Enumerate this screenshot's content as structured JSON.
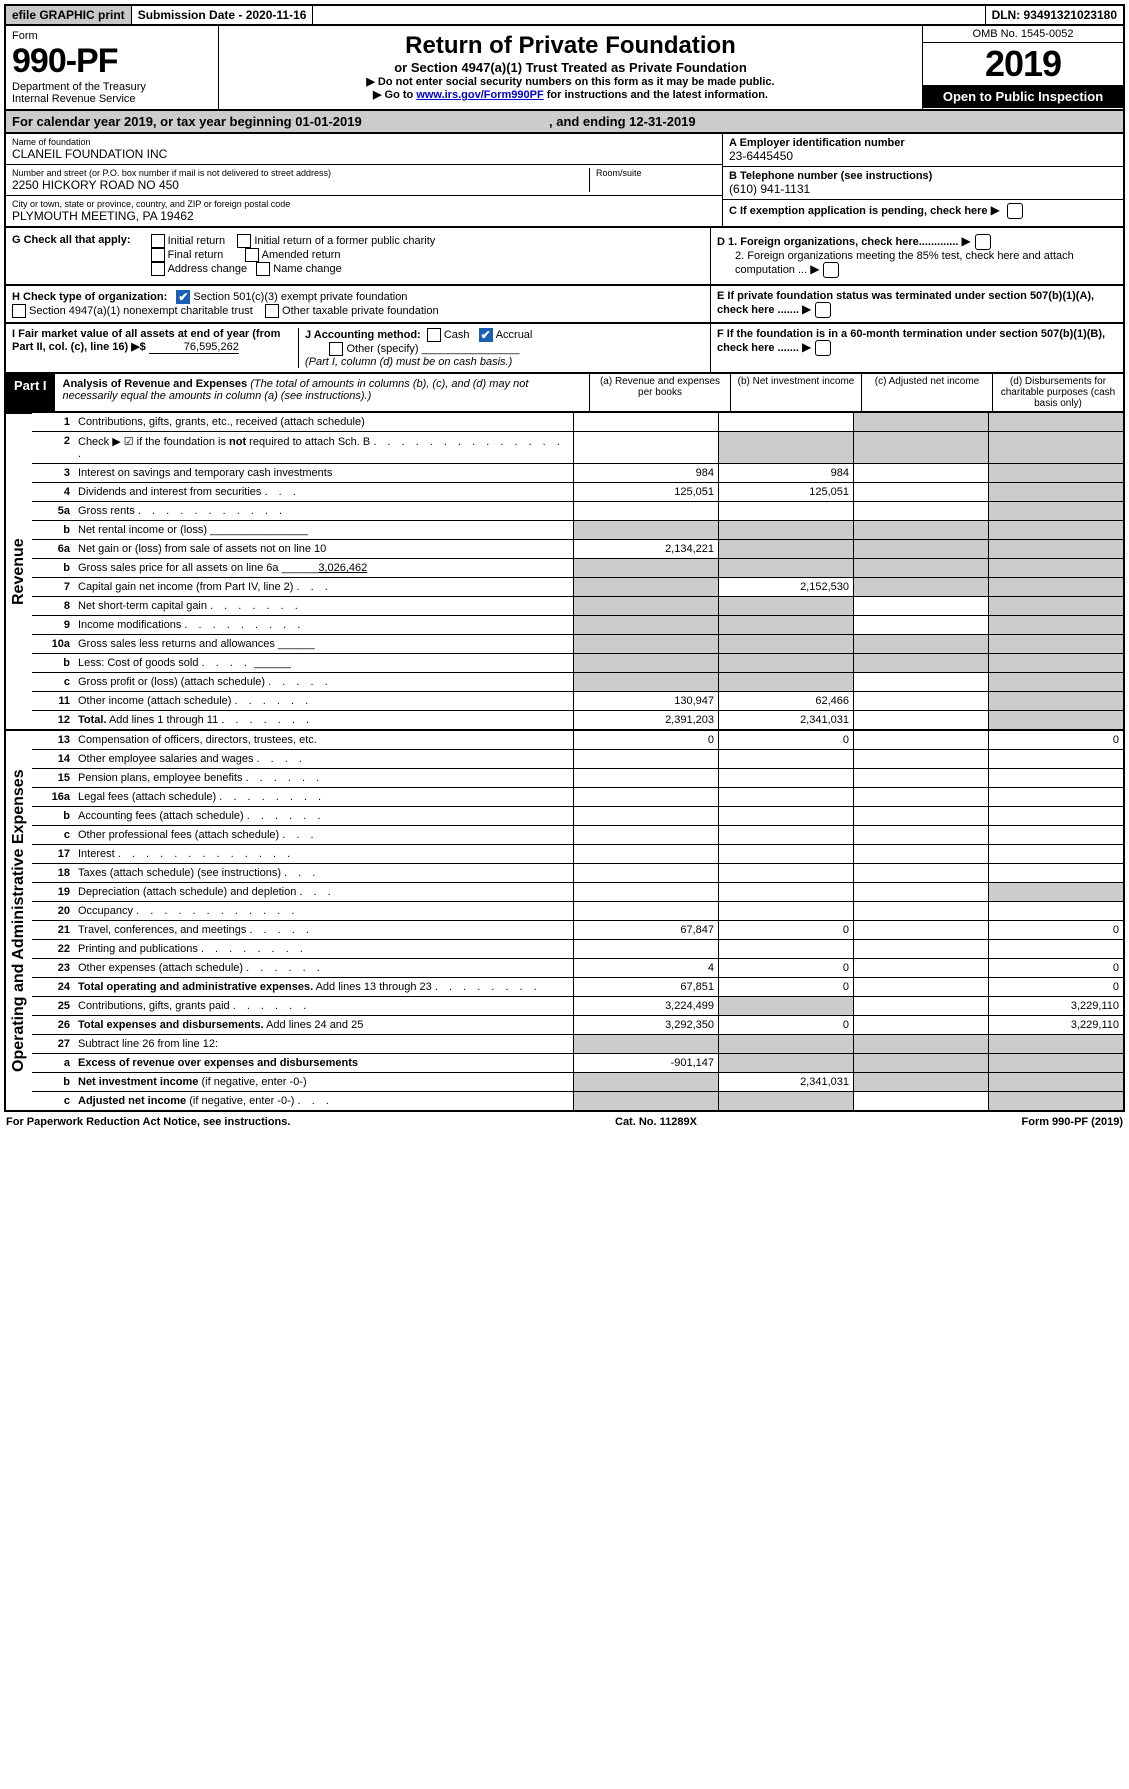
{
  "header": {
    "efile": "efile GRAPHIC print",
    "submission_label": "Submission Date - 2020-11-16",
    "dln": "DLN: 93491321023180"
  },
  "form": {
    "form_label": "Form",
    "form_number": "990-PF",
    "dept": "Department of the Treasury",
    "irs": "Internal Revenue Service",
    "title": "Return of Private Foundation",
    "subtitle": "or Section 4947(a)(1) Trust Treated as Private Foundation",
    "note1": "▶ Do not enter social security numbers on this form as it may be made public.",
    "note2_prefix": "▶ Go to ",
    "note2_link": "www.irs.gov/Form990PF",
    "note2_suffix": " for instructions and the latest information.",
    "omb": "OMB No. 1545-0052",
    "year": "2019",
    "open_public": "Open to Public Inspection"
  },
  "calyear": {
    "text_left": "For calendar year 2019, or tax year beginning 01-01-2019",
    "text_right": ", and ending 12-31-2019"
  },
  "ident": {
    "name_label": "Name of foundation",
    "name": "CLANEIL FOUNDATION INC",
    "addr_label": "Number and street (or P.O. box number if mail is not delivered to street address)",
    "addr": "2250 HICKORY ROAD NO 450",
    "room_label": "Room/suite",
    "city_label": "City or town, state or province, country, and ZIP or foreign postal code",
    "city": "PLYMOUTH MEETING, PA  19462",
    "ein_label": "A Employer identification number",
    "ein": "23-6445450",
    "tel_label": "B Telephone number (see instructions)",
    "tel": "(610) 941-1131",
    "c_label": "C  If exemption application is pending, check here"
  },
  "g": {
    "label": "G Check all that apply:",
    "opts": [
      "Initial return",
      "Initial return of a former public charity",
      "Final return",
      "Amended return",
      "Address change",
      "Name change"
    ],
    "d1": "D 1. Foreign organizations, check here.............",
    "d2": "2. Foreign organizations meeting the 85% test, check here and attach computation ...",
    "e": "E  If private foundation status was terminated under section 507(b)(1)(A), check here .......",
    "f": "F  If the foundation is in a 60-month termination under section 507(b)(1)(B), check here ......."
  },
  "h": {
    "label": "H Check type of organization:",
    "opt1": "Section 501(c)(3) exempt private foundation",
    "opt2": "Section 4947(a)(1) nonexempt charitable trust",
    "opt3": "Other taxable private foundation"
  },
  "i": {
    "label": "I Fair market value of all assets at end of year (from Part II, col. (c), line 16) ▶$",
    "value": "76,595,262"
  },
  "j": {
    "label": "J Accounting method:",
    "cash": "Cash",
    "accrual": "Accrual",
    "other": "Other (specify)",
    "note": "(Part I, column (d) must be on cash basis.)"
  },
  "part1": {
    "label": "Part I",
    "title": "Analysis of Revenue and Expenses",
    "subtitle": "(The total of amounts in columns (b), (c), and (d) may not necessarily equal the amounts in column (a) (see instructions).)",
    "col_a": "(a) Revenue and expenses per books",
    "col_b": "(b) Net investment income",
    "col_c": "(c) Adjusted net income",
    "col_d": "(d) Disbursements for charitable purposes (cash basis only)",
    "revenue_label": "Revenue",
    "expenses_label": "Operating and Administrative Expenses"
  },
  "rows": [
    {
      "n": "1",
      "d": "Contributions, gifts, grants, etc., received (attach schedule)",
      "a": "",
      "b": "",
      "c": "g",
      "dd": "g"
    },
    {
      "n": "2",
      "d": "Check ▶ ☑ if the foundation is <b>not</b> required to attach Sch. B <span class='dotted'>. . . . . . . . . . . . . . .</span>",
      "a": "",
      "b": "g",
      "c": "g",
      "dd": "g"
    },
    {
      "n": "3",
      "d": "Interest on savings and temporary cash investments",
      "a": "984",
      "b": "984",
      "c": "",
      "dd": "g"
    },
    {
      "n": "4",
      "d": "Dividends and interest from securities <span class='dotted'>. . .</span>",
      "a": "125,051",
      "b": "125,051",
      "c": "",
      "dd": "g"
    },
    {
      "n": "5a",
      "d": "Gross rents <span class='dotted'>. . . . . . . . . . .</span>",
      "a": "",
      "b": "",
      "c": "",
      "dd": "g"
    },
    {
      "n": "b",
      "d": "Net rental income or (loss)  ________________",
      "a": "g",
      "b": "g",
      "c": "g",
      "dd": "g"
    },
    {
      "n": "6a",
      "d": "Net gain or (loss) from sale of assets not on line 10",
      "a": "2,134,221",
      "b": "g",
      "c": "g",
      "dd": "g"
    },
    {
      "n": "b",
      "d": "Gross sales price for all assets on line 6a ______<u>3,026,462</u>",
      "a": "g",
      "b": "g",
      "c": "g",
      "dd": "g"
    },
    {
      "n": "7",
      "d": "Capital gain net income (from Part IV, line 2) <span class='dotted'>. . .</span>",
      "a": "g",
      "b": "2,152,530",
      "c": "g",
      "dd": "g"
    },
    {
      "n": "8",
      "d": "Net short-term capital gain <span class='dotted'>. . . . . . .</span>",
      "a": "g",
      "b": "g",
      "c": "",
      "dd": "g"
    },
    {
      "n": "9",
      "d": "Income modifications <span class='dotted'>. . . . . . . . .</span>",
      "a": "g",
      "b": "g",
      "c": "",
      "dd": "g"
    },
    {
      "n": "10a",
      "d": "Gross sales less returns and allowances  ______",
      "a": "g",
      "b": "g",
      "c": "g",
      "dd": "g"
    },
    {
      "n": "b",
      "d": "Less: Cost of goods sold <span class='dotted'>. . . .</span>  ______",
      "a": "g",
      "b": "g",
      "c": "g",
      "dd": "g"
    },
    {
      "n": "c",
      "d": "Gross profit or (loss) (attach schedule) <span class='dotted'>. . . . .</span>",
      "a": "g",
      "b": "g",
      "c": "",
      "dd": "g"
    },
    {
      "n": "11",
      "d": "Other income (attach schedule) <span class='dotted'>. . . . . .</span>",
      "a": "130,947",
      "b": "62,466",
      "c": "",
      "dd": "g"
    },
    {
      "n": "12",
      "d": "<b>Total.</b> Add lines 1 through 11 <span class='dotted'>. . . . . . .</span>",
      "a": "2,391,203",
      "b": "2,341,031",
      "c": "",
      "dd": "g"
    }
  ],
  "exprows": [
    {
      "n": "13",
      "d": "Compensation of officers, directors, trustees, etc.",
      "a": "0",
      "b": "0",
      "c": "",
      "dd": "0"
    },
    {
      "n": "14",
      "d": "Other employee salaries and wages <span class='dotted'>. . . .</span>",
      "a": "",
      "b": "",
      "c": "",
      "dd": ""
    },
    {
      "n": "15",
      "d": "Pension plans, employee benefits <span class='dotted'>. . . . . .</span>",
      "a": "",
      "b": "",
      "c": "",
      "dd": ""
    },
    {
      "n": "16a",
      "d": "Legal fees (attach schedule) <span class='dotted'>. . . . . . . .</span>",
      "a": "",
      "b": "",
      "c": "",
      "dd": ""
    },
    {
      "n": "b",
      "d": "Accounting fees (attach schedule) <span class='dotted'>. . . . . .</span>",
      "a": "",
      "b": "",
      "c": "",
      "dd": ""
    },
    {
      "n": "c",
      "d": "Other professional fees (attach schedule) <span class='dotted'>. . .</span>",
      "a": "",
      "b": "",
      "c": "",
      "dd": ""
    },
    {
      "n": "17",
      "d": "Interest <span class='dotted'>. . . . . . . . . . . . .</span>",
      "a": "",
      "b": "",
      "c": "",
      "dd": ""
    },
    {
      "n": "18",
      "d": "Taxes (attach schedule) (see instructions) <span class='dotted'>. . .</span>",
      "a": "",
      "b": "",
      "c": "",
      "dd": ""
    },
    {
      "n": "19",
      "d": "Depreciation (attach schedule) and depletion <span class='dotted'>. . .</span>",
      "a": "",
      "b": "",
      "c": "",
      "dd": "g"
    },
    {
      "n": "20",
      "d": "Occupancy <span class='dotted'>. . . . . . . . . . . .</span>",
      "a": "",
      "b": "",
      "c": "",
      "dd": ""
    },
    {
      "n": "21",
      "d": "Travel, conferences, and meetings <span class='dotted'>. . . . .</span>",
      "a": "67,847",
      "b": "0",
      "c": "",
      "dd": "0"
    },
    {
      "n": "22",
      "d": "Printing and publications <span class='dotted'>. . . . . . . .</span>",
      "a": "",
      "b": "",
      "c": "",
      "dd": ""
    },
    {
      "n": "23",
      "d": "Other expenses (attach schedule) <span class='dotted'>. . . . . .</span>",
      "a": "4",
      "b": "0",
      "c": "",
      "dd": "0"
    },
    {
      "n": "24",
      "d": "<b>Total operating and administrative expenses.</b> Add lines 13 through 23 <span class='dotted'>. . . . . . . .</span>",
      "a": "67,851",
      "b": "0",
      "c": "",
      "dd": "0"
    },
    {
      "n": "25",
      "d": "Contributions, gifts, grants paid <span class='dotted'>. . . . . .</span>",
      "a": "3,224,499",
      "b": "g",
      "c": "",
      "dd": "3,229,110"
    },
    {
      "n": "26",
      "d": "<b>Total expenses and disbursements.</b> Add lines 24 and 25",
      "a": "3,292,350",
      "b": "0",
      "c": "",
      "dd": "3,229,110"
    },
    {
      "n": "27",
      "d": "Subtract line 26 from line 12:",
      "a": "g",
      "b": "g",
      "c": "g",
      "dd": "g"
    },
    {
      "n": "a",
      "d": "<b>Excess of revenue over expenses and disbursements</b>",
      "a": "-901,147",
      "b": "g",
      "c": "g",
      "dd": "g"
    },
    {
      "n": "b",
      "d": "<b>Net investment income</b> (if negative, enter -0-)",
      "a": "g",
      "b": "2,341,031",
      "c": "g",
      "dd": "g"
    },
    {
      "n": "c",
      "d": "<b>Adjusted net income</b> (if negative, enter -0-) <span class='dotted'>. . .</span>",
      "a": "g",
      "b": "g",
      "c": "",
      "dd": "g"
    }
  ],
  "footer": {
    "left": "For Paperwork Reduction Act Notice, see instructions.",
    "mid": "Cat. No. 11289X",
    "right": "Form 990-PF (2019)"
  }
}
